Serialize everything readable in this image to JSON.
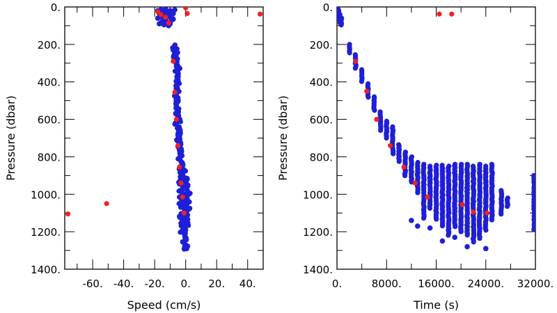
{
  "chart_data": [
    {
      "type": "scatter",
      "xlabel": "Speed (cm/s)",
      "ylabel": "Pressure (dbar)",
      "xlim": [
        -78,
        50
      ],
      "ylim": [
        1400,
        0
      ],
      "x_ticks": [
        -60,
        -40,
        -20,
        0,
        20,
        40
      ],
      "x_tick_labels": [
        "-60.",
        "-40.",
        "-20.",
        "0.",
        "20.",
        "40."
      ],
      "y_ticks": [
        0,
        200,
        400,
        600,
        800,
        1000,
        1200,
        1400
      ],
      "y_tick_labels": [
        "0.",
        "200.",
        "400.",
        "600.",
        "800.",
        "1000.",
        "1200.",
        "1400."
      ],
      "grid": false,
      "series": [
        {
          "color": "#1f1fd6",
          "points": [
            [
              -18,
              20
            ],
            [
              -17,
              35
            ],
            [
              -16,
              50
            ],
            [
              -15,
              30
            ],
            [
              -14,
              45
            ],
            [
              -13,
              60
            ],
            [
              -12,
              25
            ],
            [
              -11,
              40
            ],
            [
              -10,
              55
            ],
            [
              -9,
              70
            ],
            [
              -8,
              35
            ],
            [
              -15,
              75
            ],
            [
              -12,
              80
            ],
            [
              -10,
              90
            ],
            [
              -8,
              65
            ],
            [
              -17,
              90
            ],
            [
              -14,
              95
            ],
            [
              -11,
              100
            ],
            [
              -18,
              60
            ],
            [
              -16,
              85
            ],
            [
              -7,
              15
            ],
            [
              -9,
              45
            ],
            [
              -13,
              10
            ],
            [
              -16,
              15
            ],
            [
              -10,
              20
            ],
            [
              -7,
              205
            ],
            [
              -7,
              225
            ],
            [
              -6,
              245
            ],
            [
              -7,
              265
            ],
            [
              -6,
              285
            ],
            [
              -6,
              305
            ],
            [
              -5,
              325
            ],
            [
              -6,
              345
            ],
            [
              -5,
              365
            ],
            [
              -5,
              385
            ],
            [
              -5,
              405
            ],
            [
              -6,
              425
            ],
            [
              -5,
              445
            ],
            [
              -6,
              465
            ],
            [
              -5,
              485
            ],
            [
              -5,
              505
            ],
            [
              -6,
              525
            ],
            [
              -5,
              545
            ],
            [
              -6,
              565
            ],
            [
              -5,
              585
            ],
            [
              -4,
              605
            ],
            [
              -6,
              625
            ],
            [
              -5,
              645
            ],
            [
              -4,
              665
            ],
            [
              -5,
              685
            ],
            [
              -5,
              705
            ],
            [
              -4,
              725
            ],
            [
              -5,
              745
            ],
            [
              -4,
              765
            ],
            [
              -3,
              785
            ],
            [
              -4,
              805
            ],
            [
              -3,
              825
            ],
            [
              -2,
              845
            ],
            [
              -4,
              860
            ],
            [
              -3,
              880
            ],
            [
              -1,
              870
            ],
            [
              -2,
              895
            ],
            [
              -3,
              915
            ],
            [
              -1,
              930
            ],
            [
              -4,
              945
            ],
            [
              0,
              955
            ],
            [
              -2,
              970
            ],
            [
              -3,
              985
            ],
            [
              1,
              990
            ],
            [
              -1,
              1005
            ],
            [
              -4,
              1015
            ],
            [
              0,
              1025
            ],
            [
              -2,
              1040
            ],
            [
              1,
              1050
            ],
            [
              -3,
              1060
            ],
            [
              -1,
              1075
            ],
            [
              0,
              1090
            ],
            [
              -2,
              1105
            ],
            [
              1,
              1115
            ],
            [
              -1,
              1130
            ],
            [
              0,
              1145
            ],
            [
              -2,
              1160
            ],
            [
              -1,
              1175
            ],
            [
              0,
              1190
            ],
            [
              -1,
              1210
            ],
            [
              0,
              1230
            ],
            [
              -1,
              1250
            ],
            [
              0,
              1270
            ],
            [
              0,
              1290
            ],
            [
              -3,
              1120
            ],
            [
              2,
              1080
            ],
            [
              2,
              1000
            ],
            [
              1,
              920
            ],
            [
              -2,
              1200
            ],
            [
              1,
              1160
            ]
          ]
        },
        {
          "color": "#ee2222",
          "points": [
            [
              -18,
              25
            ],
            [
              -16,
              40
            ],
            [
              -13,
              55
            ],
            [
              -11,
              85
            ],
            [
              0,
              5
            ],
            [
              1,
              35
            ],
            [
              48,
              38
            ],
            [
              -8,
              290
            ],
            [
              -7,
              455
            ],
            [
              -6,
              600
            ],
            [
              -5,
              740
            ],
            [
              -4,
              855
            ],
            [
              -3,
              940
            ],
            [
              -2,
              1015
            ],
            [
              -1,
              1100
            ],
            [
              -51,
              1050
            ],
            [
              -76,
              1105
            ]
          ]
        }
      ]
    },
    {
      "type": "scatter",
      "xlabel": "Time (s)",
      "ylabel": "Pressure (dbar)",
      "xlim": [
        0,
        32000
      ],
      "ylim": [
        1400,
        0
      ],
      "x_ticks": [
        0,
        8000,
        16000,
        24000,
        32000
      ],
      "x_tick_labels": [
        "0.",
        "8000.",
        "16000.",
        "24000.",
        "32000."
      ],
      "y_ticks": [
        0,
        200,
        400,
        600,
        800,
        1000,
        1200,
        1400
      ],
      "y_tick_labels": [
        "0.",
        "200.",
        "400.",
        "600.",
        "800.",
        "1000.",
        "1200.",
        "1400."
      ],
      "grid": false,
      "series": [
        {
          "color": "#1f1fd6",
          "columns": [
            [
              50,
              5,
              30
            ],
            [
              150,
              10,
              45
            ],
            [
              300,
              20,
              65
            ],
            [
              500,
              40,
              90
            ],
            [
              700,
              60,
              100
            ],
            [
              2000,
              200,
              245
            ],
            [
              3000,
              255,
              330
            ],
            [
              4000,
              335,
              405
            ],
            [
              5000,
              410,
              485
            ],
            [
              6000,
              480,
              560
            ],
            [
              7000,
              560,
              660
            ],
            [
              8000,
              610,
              700
            ],
            [
              9000,
              640,
              790
            ],
            [
              10000,
              735,
              830
            ],
            [
              11000,
              775,
              905
            ],
            [
              12000,
              800,
              935
            ],
            [
              13000,
              830,
              1000
            ],
            [
              14000,
              840,
              1130
            ],
            [
              15000,
              850,
              1080
            ],
            [
              16000,
              845,
              1135
            ],
            [
              17000,
              845,
              1170
            ],
            [
              18000,
              850,
              1220
            ],
            [
              19000,
              840,
              1180
            ],
            [
              20000,
              840,
              1200
            ],
            [
              21000,
              840,
              1220
            ],
            [
              22000,
              850,
              1260
            ],
            [
              23000,
              840,
              1240
            ],
            [
              24000,
              850,
              1200
            ],
            [
              25000,
              840,
              1140
            ],
            [
              26500,
              980,
              1110
            ],
            [
              27500,
              1020,
              1070
            ],
            [
              31800,
              900,
              1190
            ]
          ],
          "points": [
            [
              12000,
              1140
            ],
            [
              13000,
              1170
            ],
            [
              15000,
              1180
            ],
            [
              17000,
              1250
            ],
            [
              19000,
              1230
            ],
            [
              21000,
              1280
            ],
            [
              24000,
              1290
            ]
          ]
        },
        {
          "color": "#ee2222",
          "points": [
            [
              16500,
              38
            ],
            [
              18500,
              38
            ],
            [
              3000,
              290
            ],
            [
              4800,
              450
            ],
            [
              6400,
              600
            ],
            [
              8600,
              740
            ],
            [
              10800,
              855
            ],
            [
              12600,
              940
            ],
            [
              14600,
              1015
            ],
            [
              20200,
              1055
            ],
            [
              22000,
              1095
            ],
            [
              24200,
              1100
            ]
          ]
        }
      ]
    }
  ]
}
